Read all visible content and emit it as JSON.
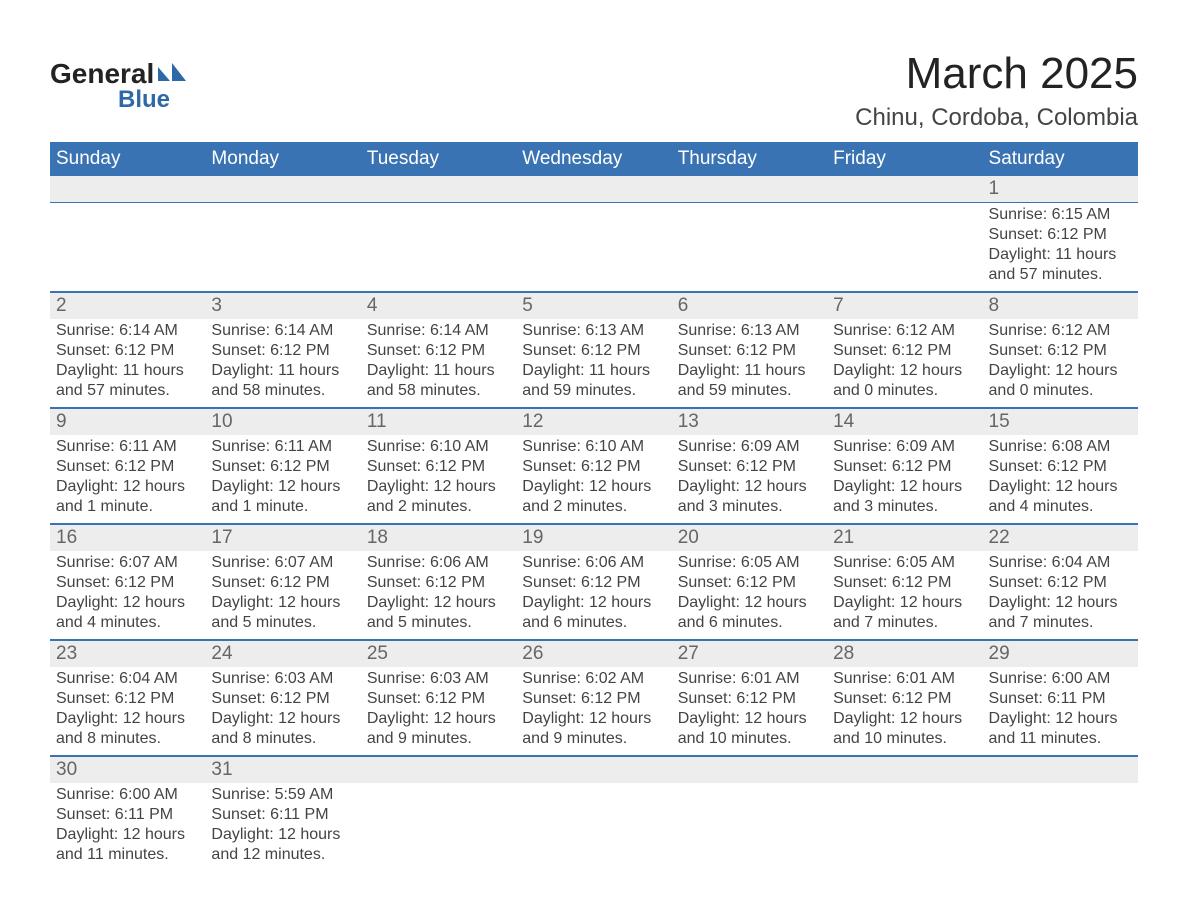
{
  "logo": {
    "general": "General",
    "blue": "Blue",
    "shape_color": "#2f68a6",
    "text_color": "#232323"
  },
  "header": {
    "month_title": "March 2025",
    "location": "Chinu, Cordoba, Colombia"
  },
  "colors": {
    "header_bg": "#3973b3",
    "header_text": "#ffffff",
    "daynum_bg": "#ededed",
    "daynum_text": "#666666",
    "rule": "#3973b3",
    "body_text": "#444444",
    "background": "#ffffff"
  },
  "typography": {
    "month_title_fontsize": 44,
    "location_fontsize": 24,
    "dayhead_fontsize": 19,
    "daynum_fontsize": 19,
    "detail_fontsize": 16
  },
  "day_headers": [
    "Sunday",
    "Monday",
    "Tuesday",
    "Wednesday",
    "Thursday",
    "Friday",
    "Saturday"
  ],
  "weeks": [
    {
      "days": [
        {
          "n": "",
          "sunrise": "",
          "sunset": "",
          "daylight": ""
        },
        {
          "n": "",
          "sunrise": "",
          "sunset": "",
          "daylight": ""
        },
        {
          "n": "",
          "sunrise": "",
          "sunset": "",
          "daylight": ""
        },
        {
          "n": "",
          "sunrise": "",
          "sunset": "",
          "daylight": ""
        },
        {
          "n": "",
          "sunrise": "",
          "sunset": "",
          "daylight": ""
        },
        {
          "n": "",
          "sunrise": "",
          "sunset": "",
          "daylight": ""
        },
        {
          "n": "1",
          "sunrise": "Sunrise: 6:15 AM",
          "sunset": "Sunset: 6:12 PM",
          "daylight": "Daylight: 11 hours and 57 minutes."
        }
      ]
    },
    {
      "days": [
        {
          "n": "2",
          "sunrise": "Sunrise: 6:14 AM",
          "sunset": "Sunset: 6:12 PM",
          "daylight": "Daylight: 11 hours and 57 minutes."
        },
        {
          "n": "3",
          "sunrise": "Sunrise: 6:14 AM",
          "sunset": "Sunset: 6:12 PM",
          "daylight": "Daylight: 11 hours and 58 minutes."
        },
        {
          "n": "4",
          "sunrise": "Sunrise: 6:14 AM",
          "sunset": "Sunset: 6:12 PM",
          "daylight": "Daylight: 11 hours and 58 minutes."
        },
        {
          "n": "5",
          "sunrise": "Sunrise: 6:13 AM",
          "sunset": "Sunset: 6:12 PM",
          "daylight": "Daylight: 11 hours and 59 minutes."
        },
        {
          "n": "6",
          "sunrise": "Sunrise: 6:13 AM",
          "sunset": "Sunset: 6:12 PM",
          "daylight": "Daylight: 11 hours and 59 minutes."
        },
        {
          "n": "7",
          "sunrise": "Sunrise: 6:12 AM",
          "sunset": "Sunset: 6:12 PM",
          "daylight": "Daylight: 12 hours and 0 minutes."
        },
        {
          "n": "8",
          "sunrise": "Sunrise: 6:12 AM",
          "sunset": "Sunset: 6:12 PM",
          "daylight": "Daylight: 12 hours and 0 minutes."
        }
      ]
    },
    {
      "days": [
        {
          "n": "9",
          "sunrise": "Sunrise: 6:11 AM",
          "sunset": "Sunset: 6:12 PM",
          "daylight": "Daylight: 12 hours and 1 minute."
        },
        {
          "n": "10",
          "sunrise": "Sunrise: 6:11 AM",
          "sunset": "Sunset: 6:12 PM",
          "daylight": "Daylight: 12 hours and 1 minute."
        },
        {
          "n": "11",
          "sunrise": "Sunrise: 6:10 AM",
          "sunset": "Sunset: 6:12 PM",
          "daylight": "Daylight: 12 hours and 2 minutes."
        },
        {
          "n": "12",
          "sunrise": "Sunrise: 6:10 AM",
          "sunset": "Sunset: 6:12 PM",
          "daylight": "Daylight: 12 hours and 2 minutes."
        },
        {
          "n": "13",
          "sunrise": "Sunrise: 6:09 AM",
          "sunset": "Sunset: 6:12 PM",
          "daylight": "Daylight: 12 hours and 3 minutes."
        },
        {
          "n": "14",
          "sunrise": "Sunrise: 6:09 AM",
          "sunset": "Sunset: 6:12 PM",
          "daylight": "Daylight: 12 hours and 3 minutes."
        },
        {
          "n": "15",
          "sunrise": "Sunrise: 6:08 AM",
          "sunset": "Sunset: 6:12 PM",
          "daylight": "Daylight: 12 hours and 4 minutes."
        }
      ]
    },
    {
      "days": [
        {
          "n": "16",
          "sunrise": "Sunrise: 6:07 AM",
          "sunset": "Sunset: 6:12 PM",
          "daylight": "Daylight: 12 hours and 4 minutes."
        },
        {
          "n": "17",
          "sunrise": "Sunrise: 6:07 AM",
          "sunset": "Sunset: 6:12 PM",
          "daylight": "Daylight: 12 hours and 5 minutes."
        },
        {
          "n": "18",
          "sunrise": "Sunrise: 6:06 AM",
          "sunset": "Sunset: 6:12 PM",
          "daylight": "Daylight: 12 hours and 5 minutes."
        },
        {
          "n": "19",
          "sunrise": "Sunrise: 6:06 AM",
          "sunset": "Sunset: 6:12 PM",
          "daylight": "Daylight: 12 hours and 6 minutes."
        },
        {
          "n": "20",
          "sunrise": "Sunrise: 6:05 AM",
          "sunset": "Sunset: 6:12 PM",
          "daylight": "Daylight: 12 hours and 6 minutes."
        },
        {
          "n": "21",
          "sunrise": "Sunrise: 6:05 AM",
          "sunset": "Sunset: 6:12 PM",
          "daylight": "Daylight: 12 hours and 7 minutes."
        },
        {
          "n": "22",
          "sunrise": "Sunrise: 6:04 AM",
          "sunset": "Sunset: 6:12 PM",
          "daylight": "Daylight: 12 hours and 7 minutes."
        }
      ]
    },
    {
      "days": [
        {
          "n": "23",
          "sunrise": "Sunrise: 6:04 AM",
          "sunset": "Sunset: 6:12 PM",
          "daylight": "Daylight: 12 hours and 8 minutes."
        },
        {
          "n": "24",
          "sunrise": "Sunrise: 6:03 AM",
          "sunset": "Sunset: 6:12 PM",
          "daylight": "Daylight: 12 hours and 8 minutes."
        },
        {
          "n": "25",
          "sunrise": "Sunrise: 6:03 AM",
          "sunset": "Sunset: 6:12 PM",
          "daylight": "Daylight: 12 hours and 9 minutes."
        },
        {
          "n": "26",
          "sunrise": "Sunrise: 6:02 AM",
          "sunset": "Sunset: 6:12 PM",
          "daylight": "Daylight: 12 hours and 9 minutes."
        },
        {
          "n": "27",
          "sunrise": "Sunrise: 6:01 AM",
          "sunset": "Sunset: 6:12 PM",
          "daylight": "Daylight: 12 hours and 10 minutes."
        },
        {
          "n": "28",
          "sunrise": "Sunrise: 6:01 AM",
          "sunset": "Sunset: 6:12 PM",
          "daylight": "Daylight: 12 hours and 10 minutes."
        },
        {
          "n": "29",
          "sunrise": "Sunrise: 6:00 AM",
          "sunset": "Sunset: 6:11 PM",
          "daylight": "Daylight: 12 hours and 11 minutes."
        }
      ]
    },
    {
      "days": [
        {
          "n": "30",
          "sunrise": "Sunrise: 6:00 AM",
          "sunset": "Sunset: 6:11 PM",
          "daylight": "Daylight: 12 hours and 11 minutes."
        },
        {
          "n": "31",
          "sunrise": "Sunrise: 5:59 AM",
          "sunset": "Sunset: 6:11 PM",
          "daylight": "Daylight: 12 hours and 12 minutes."
        },
        {
          "n": "",
          "sunrise": "",
          "sunset": "",
          "daylight": ""
        },
        {
          "n": "",
          "sunrise": "",
          "sunset": "",
          "daylight": ""
        },
        {
          "n": "",
          "sunrise": "",
          "sunset": "",
          "daylight": ""
        },
        {
          "n": "",
          "sunrise": "",
          "sunset": "",
          "daylight": ""
        },
        {
          "n": "",
          "sunrise": "",
          "sunset": "",
          "daylight": ""
        }
      ]
    }
  ]
}
